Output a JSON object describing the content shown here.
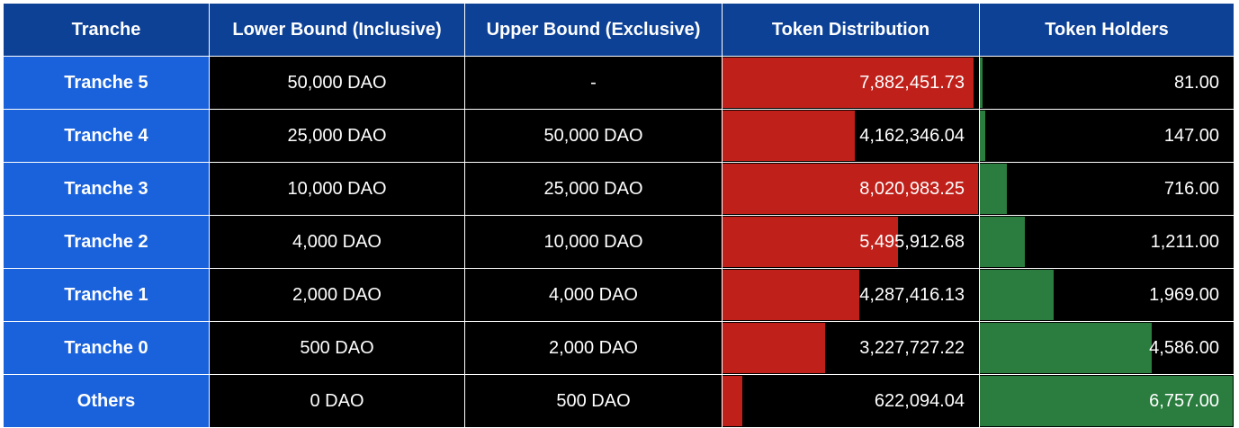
{
  "columns": [
    "Tranche",
    "Lower Bound (Inclusive)",
    "Upper Bound (Exclusive)",
    "Token Distribution",
    "Token Holders"
  ],
  "chart_data": {
    "type": "table",
    "columns": [
      "Tranche",
      "Lower Bound (Inclusive)",
      "Upper Bound (Exclusive)",
      "Token Distribution",
      "Token Holders"
    ],
    "series": [
      {
        "name": "Token Distribution",
        "color": "#c0201a"
      },
      {
        "name": "Token Holders",
        "color": "#2a7d3e"
      }
    ],
    "rows": [
      {
        "tranche": "Tranche 5",
        "lower": "50,000 DAO",
        "upper": "-",
        "distribution": 7882451.73,
        "distribution_label": "7,882,451.73",
        "holders": 81,
        "holders_label": "81.00"
      },
      {
        "tranche": "Tranche 4",
        "lower": "25,000 DAO",
        "upper": "50,000 DAO",
        "distribution": 4162346.04,
        "distribution_label": "4,162,346.04",
        "holders": 147,
        "holders_label": "147.00"
      },
      {
        "tranche": "Tranche 3",
        "lower": "10,000 DAO",
        "upper": "25,000 DAO",
        "distribution": 8020983.25,
        "distribution_label": "8,020,983.25",
        "holders": 716,
        "holders_label": "716.00"
      },
      {
        "tranche": "Tranche 2",
        "lower": "4,000 DAO",
        "upper": "10,000 DAO",
        "distribution": 5495912.68,
        "distribution_label": "5,495,912.68",
        "holders": 1211,
        "holders_label": "1,211.00"
      },
      {
        "tranche": "Tranche 1",
        "lower": "2,000 DAO",
        "upper": "4,000 DAO",
        "distribution": 4287416.13,
        "distribution_label": "4,287,416.13",
        "holders": 1969,
        "holders_label": "1,969.00"
      },
      {
        "tranche": "Tranche 0",
        "lower": "500 DAO",
        "upper": "2,000 DAO",
        "distribution": 3227727.22,
        "distribution_label": "3,227,727.22",
        "holders": 4586,
        "holders_label": "4,586.00"
      },
      {
        "tranche": "Others",
        "lower": "0 DAO",
        "upper": "500 DAO",
        "distribution": 622094.04,
        "distribution_label": "622,094.04",
        "holders": 6757,
        "holders_label": "6,757.00"
      }
    ]
  }
}
